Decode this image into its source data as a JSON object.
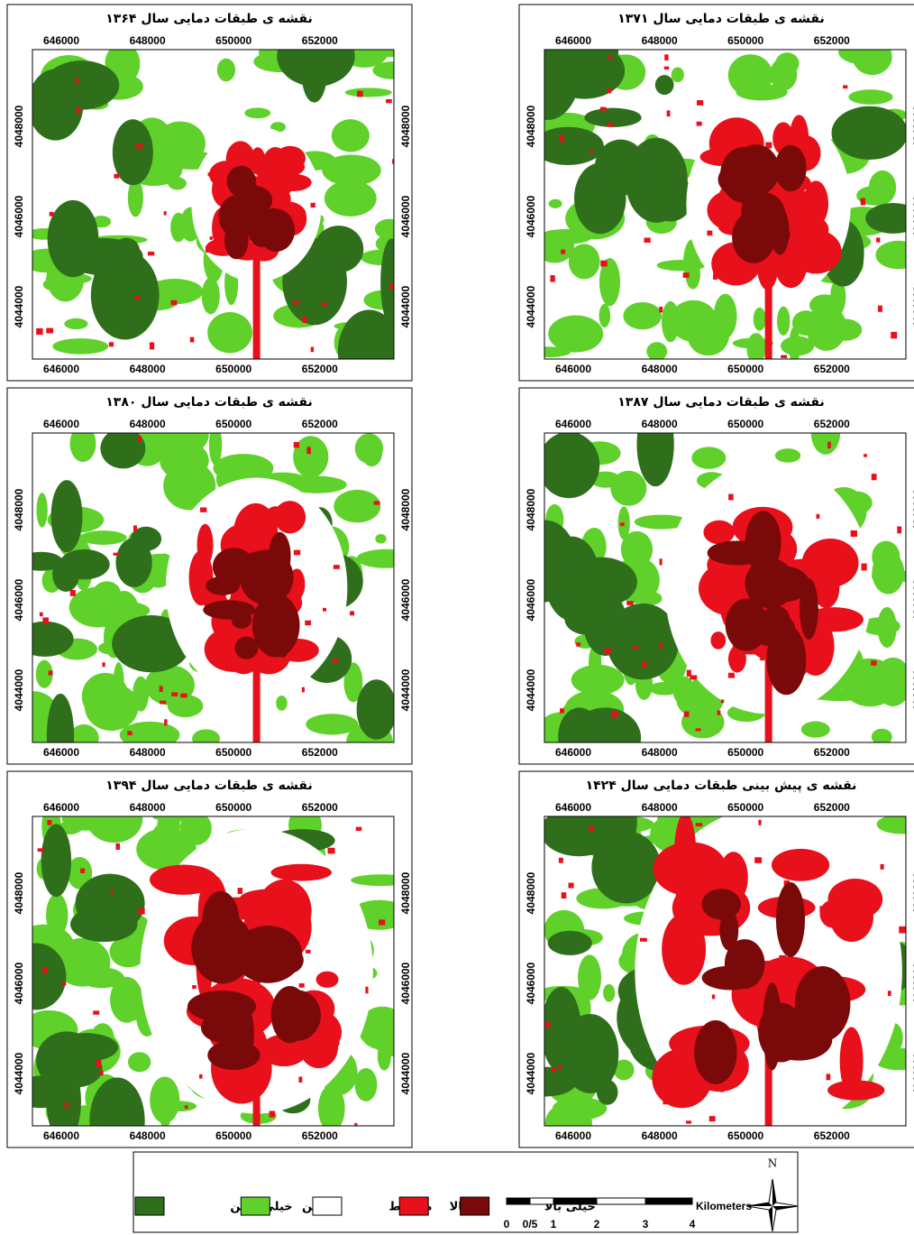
{
  "panels": [
    {
      "title": "نقشه ی طبقات دمایی سال ۱۳۶۴"
    },
    {
      "title": "نقشه ی طبقات دمایی سال ۱۳۷۱"
    },
    {
      "title": "نقشه ی طبقات دمایی سال ۱۳۸۰"
    },
    {
      "title": "نقشه ی طبقات دمایی سال ۱۳۸۷"
    },
    {
      "title": "نقشه ی طبقات دمایی سال ۱۳۹۴"
    },
    {
      "title": "نقشه ی پیش بینی طبقات دمایی سال ۱۴۲۴"
    }
  ],
  "xticks": [
    646000,
    648000,
    650000,
    652000
  ],
  "yticks": [
    4044000,
    4046000,
    4048000
  ],
  "xlim": [
    645330,
    653720
  ],
  "ylim": [
    4042840,
    4049700
  ],
  "legend": {
    "items": [
      {
        "label": "خیلی پایین",
        "color": "#2f6f1c"
      },
      {
        "label": "پایین",
        "color": "#5fd12a"
      },
      {
        "label": "متوسط",
        "color": "#ffffff"
      },
      {
        "label": "بالا",
        "color": "#e8101a"
      },
      {
        "label": "خیلی بالا",
        "color": "#7a0a0a"
      }
    ]
  },
  "scale_bar": {
    "labels": [
      "0",
      "0/5",
      "1",
      "2",
      "3",
      "4"
    ],
    "unit": "Kilometers"
  },
  "north": "N"
}
